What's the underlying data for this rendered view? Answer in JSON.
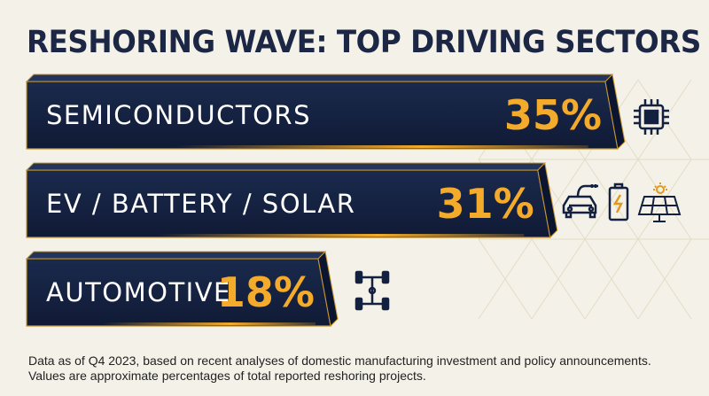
{
  "title": "RESHORING WAVE: TOP DRIVING SECTORS",
  "chart_data": {
    "type": "bar",
    "orientation": "horizontal",
    "categories": [
      "SEMICONDUCTORS",
      "EV / BATTERY / SOLAR",
      "AUTOMOTIVE"
    ],
    "values": [
      35,
      31,
      18
    ],
    "value_labels": [
      "35%",
      "31%",
      "18%"
    ],
    "unit": "%",
    "title": "RESHORING WAVE: TOP DRIVING SECTORS",
    "xlabel": "",
    "ylabel": "",
    "grid": false,
    "legend": "none",
    "colors": {
      "bar": "#13203f",
      "bar_edge": "#c8962e",
      "value": "#f4aa2a",
      "label": "#ffffff"
    }
  },
  "icons": {
    "semiconductors": [
      "chip-icon"
    ],
    "ev_battery_solar": [
      "electric-car-icon",
      "battery-charging-icon",
      "solar-panel-icon"
    ],
    "automotive": [
      "chassis-icon"
    ]
  },
  "footnote": {
    "line1": "Data as of Q4 2023, based on recent analyses of domestic manufacturing investment and policy announcements.",
    "line2": "Values are approximate percentages of total reported reshoring projects."
  }
}
